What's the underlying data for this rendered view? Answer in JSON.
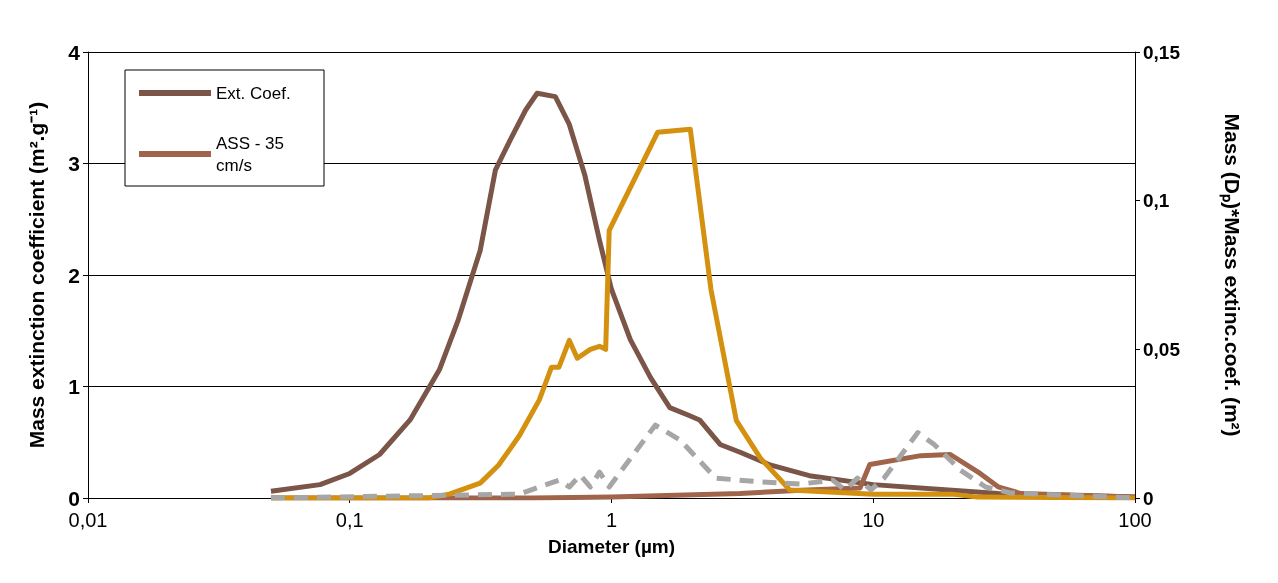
{
  "chart_data": {
    "type": "line",
    "xlabel": "Diameter (µm)",
    "ylabel": "Mass extinction coefficient (m².g⁻¹)",
    "y2label": "Mass (Dₚ)*Mass extinc.coef. (m²)",
    "log": "x",
    "grid": "y",
    "legend": "top left",
    "marker": "none",
    "xlim": [
      0.01,
      100
    ],
    "xticks": [
      {
        "value": 0.01,
        "label": "0,01"
      },
      {
        "value": 0.1,
        "label": "0,1"
      },
      1,
      10,
      100
    ],
    "ylim": [
      0,
      4
    ],
    "yticks": [
      0,
      1,
      2,
      3,
      4
    ],
    "y2lim": [
      0,
      0.15
    ],
    "y2ticks": [
      0,
      {
        "value": 0.05,
        "label": "0,05"
      },
      {
        "value": 0.1,
        "label": "0,1"
      },
      {
        "value": 0.15,
        "label": "0,15"
      }
    ],
    "series": [
      {
        "name": "Ext. Coef.",
        "color": "#7a5548",
        "line_style": "solid",
        "x": [
          0.05,
          0.077,
          0.1,
          0.13,
          0.17,
          0.22,
          0.26,
          0.315,
          0.36,
          0.41,
          0.47,
          0.52,
          0.61,
          0.69,
          0.79,
          0.9,
          1.0,
          1.18,
          1.41,
          1.67,
          1.98,
          2.17,
          2.6,
          3.1,
          4.0,
          5.7,
          10,
          20,
          30,
          100
        ],
        "values": [
          0.06,
          0.12,
          0.22,
          0.39,
          0.7,
          1.15,
          1.6,
          2.22,
          2.94,
          3.21,
          3.48,
          3.63,
          3.6,
          3.35,
          2.9,
          2.31,
          1.87,
          1.42,
          1.08,
          0.81,
          0.74,
          0.7,
          0.48,
          0.41,
          0.3,
          0.2,
          0.12,
          0.07,
          0.04,
          0.01
        ]
      },
      {
        "name": "ASS - 35 cm/s",
        "color": "#a0644a",
        "line_style": "solid",
        "x": [
          0.05,
          0.5,
          1.0,
          3.1,
          5.3,
          8.9,
          9.7,
          15.2,
          19.7,
          25.6,
          30,
          36.6,
          100
        ],
        "values": [
          0,
          0,
          0.01,
          0.04,
          0.07,
          0.09,
          0.3,
          0.38,
          0.39,
          0.22,
          0.1,
          0.04,
          0.01
        ]
      },
      {
        "color": "#d4900f",
        "axis": "y2",
        "line_style": "solid",
        "x": [
          0.05,
          0.2,
          0.24,
          0.315,
          0.37,
          0.445,
          0.53,
          0.59,
          0.63,
          0.69,
          0.74,
          0.83,
          0.9,
          0.95,
          0.98,
          1.5,
          2.0,
          2.4,
          3.0,
          3.7,
          4.8,
          10,
          20,
          25,
          100
        ],
        "values": [
          0,
          0,
          0.0013,
          0.005,
          0.011,
          0.021,
          0.033,
          0.044,
          0.044,
          0.053,
          0.047,
          0.05,
          0.051,
          0.05,
          0.09,
          0.123,
          0.124,
          0.07,
          0.026,
          0.0135,
          0.0027,
          0.0013,
          0.0013,
          0.0003,
          0
        ]
      },
      {
        "color": "#a6a6a6",
        "axis": "y2",
        "line_style": "dashed",
        "x": [
          0.05,
          0.445,
          0.53,
          0.63,
          0.69,
          0.76,
          0.83,
          0.9,
          0.98,
          1.47,
          1.83,
          2.5,
          3.7,
          5.3,
          7.0,
          7.8,
          8.7,
          9.8,
          11.0,
          14.8,
          17.1,
          21.5,
          26.9,
          33.5,
          100
        ],
        "values": [
          0,
          0.0013,
          0.0037,
          0.006,
          0.0037,
          0.0077,
          0.0037,
          0.0087,
          0.0037,
          0.0245,
          0.0195,
          0.0067,
          0.0054,
          0.0047,
          0.006,
          0.0027,
          0.0067,
          0.0027,
          0.0067,
          0.022,
          0.018,
          0.0094,
          0.0037,
          0.0017,
          0
        ]
      }
    ]
  }
}
